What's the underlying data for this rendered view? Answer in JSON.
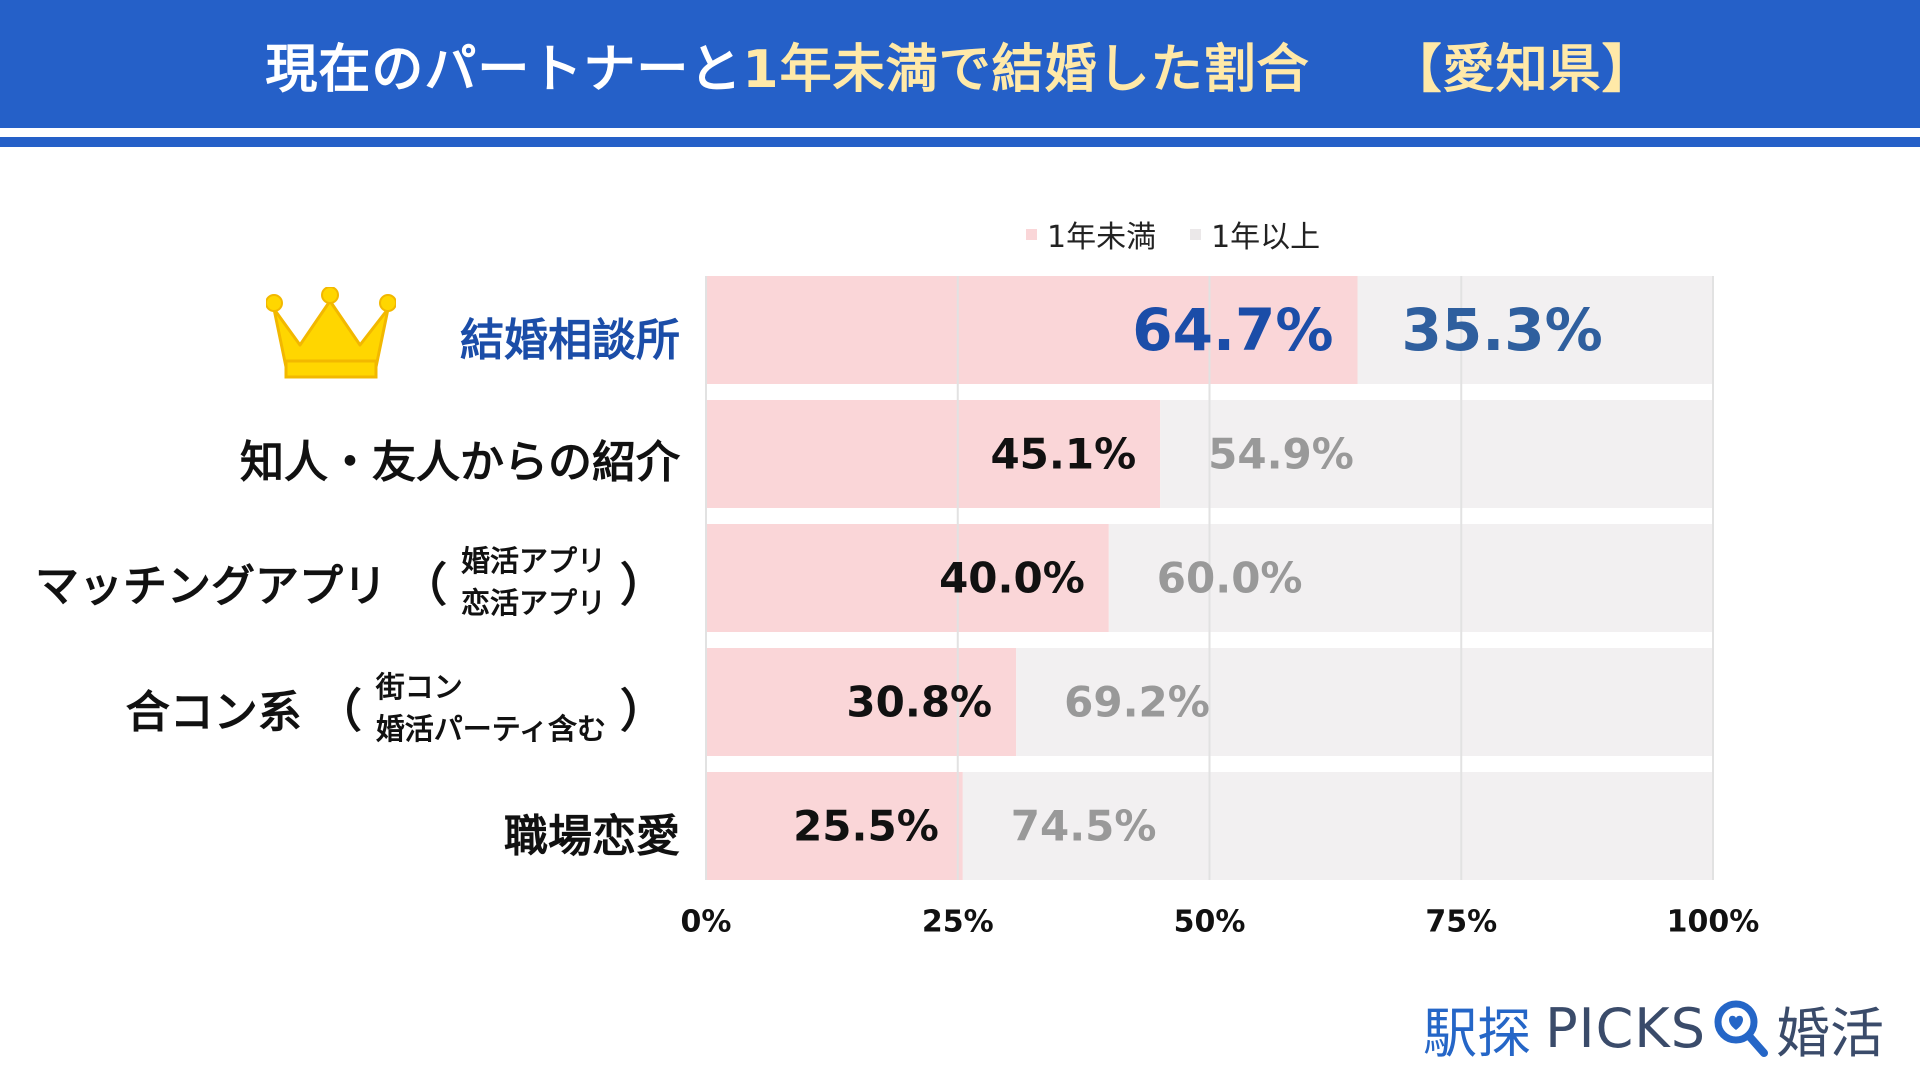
{
  "header": {
    "title_part1": "現在のパートナーと",
    "title_part2": "1年未満で結婚した割合",
    "region": "【愛知県】"
  },
  "legend": {
    "items": [
      {
        "label": "1年未満",
        "color": "#fad6d8"
      },
      {
        "label": "1年以上",
        "color": "#f2f0f1"
      }
    ]
  },
  "categories": [
    {
      "label": "結婚相談所"
    },
    {
      "label": "知人・友人からの紹介"
    },
    {
      "label": "マッチングアプリ",
      "paren_open": "（",
      "paren_close": "）",
      "sub": [
        "婚活アプリ",
        "恋活アプリ"
      ]
    },
    {
      "label": "合コン系",
      "paren_open": "（",
      "paren_close": "）",
      "sub": [
        "街コン",
        "婚活パーティ含む"
      ]
    },
    {
      "label": "職場恋愛"
    }
  ],
  "chart_data": {
    "type": "bar",
    "orientation": "horizontal",
    "stacked": true,
    "title": "現在のパートナーと1年未満で結婚した割合【愛知県】",
    "categories": [
      "結婚相談所",
      "知人・友人からの紹介",
      "マッチングアプリ（婚活アプリ 恋活アプリ）",
      "合コン系（街コン 婚活パーティ含む）",
      "職場恋愛"
    ],
    "series": [
      {
        "name": "1年未満",
        "values": [
          64.7,
          45.1,
          40.0,
          30.8,
          25.5
        ],
        "color": "#fad6d8"
      },
      {
        "name": "1年以上",
        "values": [
          35.3,
          54.9,
          60.0,
          69.2,
          74.5
        ],
        "color": "#f2f0f1"
      }
    ],
    "value_labels": {
      "series_1": [
        "64.7%",
        "45.1%",
        "40.0%",
        "30.8%",
        "25.5%"
      ],
      "series_2": [
        "35.3%",
        "54.9%",
        "60.0%",
        "69.2%",
        "74.5%"
      ]
    },
    "xlim": [
      0,
      100
    ],
    "x_ticks": [
      0,
      25,
      50,
      75,
      100
    ],
    "x_tick_labels": [
      "0%",
      "25%",
      "50%",
      "75%",
      "100%"
    ],
    "grid": true,
    "legend_position": "top-right",
    "highlight_colors": {
      "top_under": "#1b4da8",
      "top_over": "#2f5f9e",
      "under": "#111111",
      "over": "#999999"
    }
  },
  "branding": {
    "station": "駅探",
    "picks": "PICKS",
    "konkatsu": "婚活",
    "colors": {
      "primary": "#2566c7",
      "text": "#3a4b6a"
    }
  },
  "colors": {
    "header_bg": "#2560c8",
    "header_text": "#ffffff",
    "header_highlight": "#ffe9a8",
    "top_category": "#1b4da8"
  }
}
